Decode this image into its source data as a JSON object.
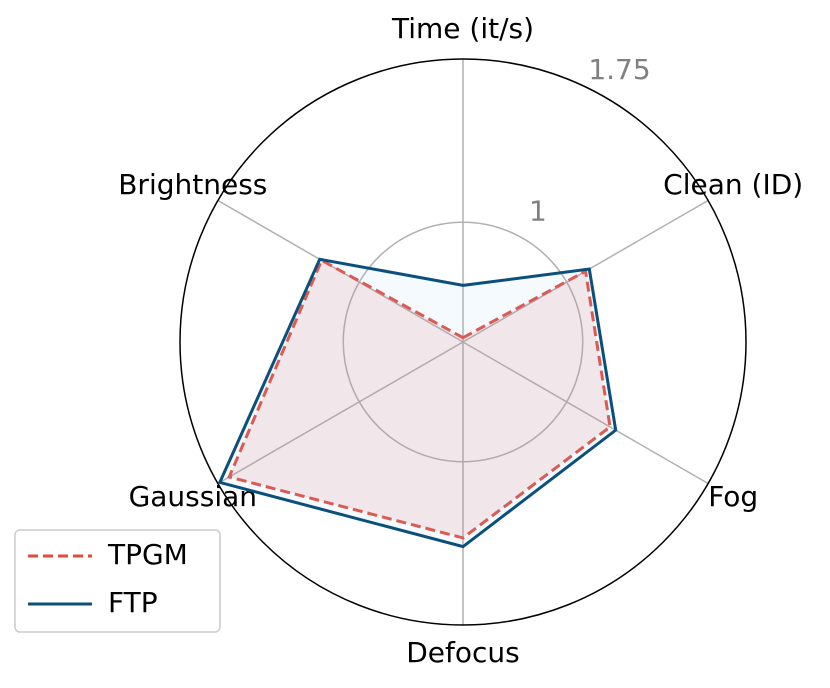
{
  "chart_data": {
    "type": "radar",
    "categories": [
      "Time (it/s)",
      "Clean (ID)",
      "Fog",
      "Defocus",
      "Gaussian",
      "Brightness"
    ],
    "series": [
      {
        "name": "TPGM",
        "color": "#e24a3b",
        "values": [
          0.47,
          1.1,
          1.23,
          1.35,
          1.69,
          1.2
        ]
      },
      {
        "name": "FTP",
        "color": "#0b4f7c",
        "values": [
          0.71,
          1.12,
          1.26,
          1.39,
          1.74,
          1.21
        ]
      }
    ],
    "rlim": [
      0.45,
      1.75
    ],
    "rticks": [
      1.0,
      1.75
    ],
    "legend": "lower left"
  }
}
